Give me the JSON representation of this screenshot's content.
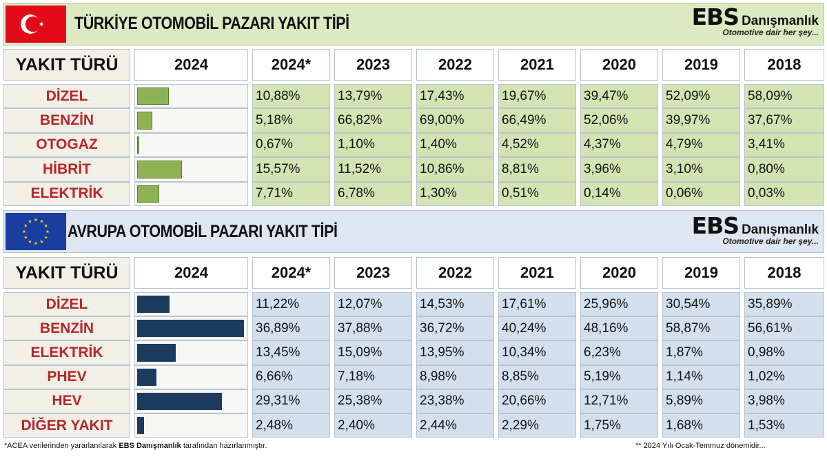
{
  "turkey": {
    "title": "TÜRKİYE OTOMOBİL PAZARI YAKIT TİPİ",
    "flag": "turkish-flag",
    "header": {
      "label": "YAKIT TÜRÜ",
      "years": [
        "2024",
        "2024*",
        "2023",
        "2022",
        "2021",
        "2020",
        "2019",
        "2018"
      ]
    },
    "rows": [
      {
        "fuel": "DİZEL",
        "values": [
          "10,88%",
          "13,79%",
          "17,43%",
          "19,67%",
          "39,47%",
          "52,09%",
          "58,09%"
        ]
      },
      {
        "fuel": "BENZİN",
        "values": [
          "5,18%",
          "66,82%",
          "69,00%",
          "66,49%",
          "52,06%",
          "39,97%",
          "37,67%"
        ]
      },
      {
        "fuel": "OTOGAZ",
        "values": [
          "0,67%",
          "1,10%",
          "1,40%",
          "4,52%",
          "4,37%",
          "4,79%",
          "3,41%"
        ]
      },
      {
        "fuel": "HİBRİT",
        "values": [
          "15,57%",
          "11,52%",
          "10,86%",
          "8,81%",
          "3,96%",
          "3,10%",
          "0,80%"
        ]
      },
      {
        "fuel": "ELEKTRİK",
        "values": [
          "7,71%",
          "6,78%",
          "1,30%",
          "0,51%",
          "0,14%",
          "0,06%",
          "0,03%"
        ]
      }
    ]
  },
  "europe": {
    "title": "AVRUPA OTOMOBİL PAZARI YAKIT TİPİ",
    "flag": "eu-flag",
    "header": {
      "label": "YAKIT TÜRÜ",
      "years": [
        "2024",
        "2024*",
        "2023",
        "2022",
        "2021",
        "2020",
        "2019",
        "2018"
      ]
    },
    "rows": [
      {
        "fuel": "DİZEL",
        "values": [
          "11,22%",
          "12,07%",
          "14,53%",
          "17,61%",
          "25,96%",
          "30,54%",
          "35,89%"
        ]
      },
      {
        "fuel": "BENZİN",
        "values": [
          "36,89%",
          "37,88%",
          "36,72%",
          "40,24%",
          "48,16%",
          "58,87%",
          "56,61%"
        ]
      },
      {
        "fuel": "ELEKTRİK",
        "values": [
          "13,45%",
          "15,09%",
          "13,95%",
          "10,34%",
          "6,23%",
          "1,87%",
          "0,98%"
        ]
      },
      {
        "fuel": "PHEV",
        "values": [
          "6,66%",
          "7,18%",
          "8,98%",
          "8,85%",
          "5,19%",
          "1,14%",
          "1,02%"
        ]
      },
      {
        "fuel": "HEV",
        "values": [
          "29,31%",
          "25,38%",
          "23,38%",
          "20,66%",
          "12,71%",
          "5,89%",
          "3,98%"
        ]
      },
      {
        "fuel": "DİĞER YAKIT",
        "values": [
          "2,48%",
          "2,40%",
          "2,44%",
          "2,29%",
          "1,75%",
          "1,68%",
          "1,53%"
        ]
      }
    ]
  },
  "logo": {
    "brand": "EBS",
    "name": "Danışmanlık",
    "tagline": "Otomotive dair her şey..."
  },
  "footer": {
    "note_prefix": "*ACEA verilerinden yararlanılarak ",
    "note_brand": "EBS Danışmanlık",
    "note_suffix": " tarafından hazırlanmıştır.",
    "right_note": "** 2024 Yılı Ocak-Temmuz dönemidir..."
  },
  "colors": {
    "tr_bar": "#8db253",
    "eu_bar": "#1d3a5f",
    "fuel_text": "#b7252b",
    "tr_value_bg": "#d3e4b2",
    "eu_value_bg": "#d4dfee"
  },
  "chart_data": [
    {
      "type": "bar",
      "orientation": "horizontal",
      "title": "TÜRKİYE OTOMOBİL PAZARI YAKIT TİPİ",
      "categories": [
        "DİZEL",
        "BENZİN",
        "OTOGAZ",
        "HİBRİT",
        "ELEKTRİK"
      ],
      "series": [
        {
          "name": "2024*",
          "values": [
            10.88,
            5.18,
            0.67,
            15.57,
            7.71
          ]
        }
      ],
      "xlim": [
        0,
        37
      ],
      "unit": "%"
    },
    {
      "type": "bar",
      "orientation": "horizontal",
      "title": "AVRUPA OTOMOBİL PAZARI YAKIT TİPİ",
      "categories": [
        "DİZEL",
        "BENZİN",
        "ELEKTRİK",
        "PHEV",
        "HEV",
        "DİĞER YAKIT"
      ],
      "series": [
        {
          "name": "2024*",
          "values": [
            11.22,
            36.89,
            13.45,
            6.66,
            29.31,
            2.48
          ]
        }
      ],
      "xlim": [
        0,
        37
      ],
      "unit": "%"
    }
  ]
}
